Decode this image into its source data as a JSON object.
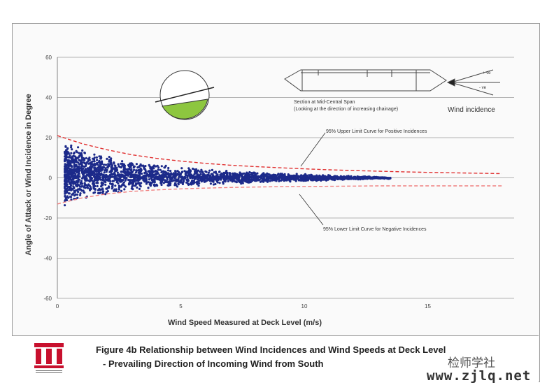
{
  "chart_data": {
    "type": "scatter",
    "xlabel": "Wind Speed Measured at Deck Level (m/s)",
    "ylabel": "Angle of Attack or Wind Incidence in Degree",
    "xlim": [
      0,
      18.5
    ],
    "ylim": [
      -60,
      60
    ],
    "x_ticks": [
      "0",
      "5",
      "10",
      "15"
    ],
    "y_ticks": [
      "60",
      "40",
      "20",
      "0",
      "-20",
      "-40",
      "-60"
    ],
    "grid": "horizontal",
    "series": [
      {
        "marker_color": "#1c2a8a",
        "summary": "dense point cloud, spread decreasing with wind speed",
        "x": [
          0.3,
          0.5,
          0.8,
          1.0,
          1.5,
          2.0,
          2.5,
          3.0,
          3.5,
          4.0,
          4.5,
          5.0,
          5.5,
          6.0,
          6.5,
          7.0,
          7.5,
          8.0,
          8.5,
          9.0,
          9.5,
          10.0,
          10.5,
          11.0,
          11.5,
          12.0,
          13.0,
          13.5
        ],
        "y_upper": [
          20,
          18,
          16,
          15,
          13,
          11,
          10,
          9,
          8,
          7,
          6,
          5.5,
          5,
          4.5,
          4,
          3.5,
          3,
          3,
          2.5,
          2.5,
          2,
          2,
          1.5,
          1.5,
          1,
          1,
          0.5,
          0
        ],
        "y_lower": [
          -15,
          -13,
          -12,
          -11,
          -10,
          -9,
          -8,
          -7,
          -6,
          -5.5,
          -5,
          -4.5,
          -4,
          -4,
          -3.5,
          -3,
          -3,
          -2.5,
          -2.5,
          -2,
          -2,
          -2,
          -1.5,
          -1.5,
          -1,
          -1,
          -0.5,
          -0.5
        ]
      }
    ],
    "limit_curves": [
      {
        "label": "95% Upper Limit Curve for Positive Incidences",
        "color": "#e03030",
        "x": [
          0,
          1,
          2,
          3,
          4,
          5,
          6,
          7,
          8,
          9,
          10,
          11,
          12,
          13,
          14,
          15,
          16,
          17,
          18
        ],
        "y": [
          21,
          17,
          14,
          11.5,
          9.7,
          8.3,
          7.2,
          6.3,
          5.6,
          5.0,
          4.5,
          4.0,
          3.6,
          3.3,
          3.0,
          2.7,
          2.5,
          2.3,
          2.1
        ]
      },
      {
        "label": "95% Lower Limit Curve for Negative Incidences",
        "color": "#f08080",
        "x": [
          0,
          1,
          2,
          3,
          4,
          5,
          6,
          7,
          8,
          9,
          10,
          11,
          12,
          13,
          14,
          15,
          16,
          17,
          18
        ],
        "y": [
          -13,
          -10,
          -8,
          -6.8,
          -6.0,
          -5.5,
          -5.1,
          -4.8,
          -4.6,
          -4.4,
          -4.3,
          -4.2,
          -4.1,
          -4.0,
          -4.0,
          -4.0,
          -4.0,
          -4.0,
          -4.0
        ]
      }
    ],
    "annotations": {
      "section_label_1": "Section at Mid-Central Span",
      "section_label_2": "(Looking at the direction of increasing chainage)",
      "wind_incidence": "Wind incidence",
      "plus_ve": "+ ve",
      "minus_ve": "- ve"
    }
  },
  "caption": {
    "line1": "Figure 4b   Relationship between Wind Incidences and Wind Speeds at Deck Level",
    "line2": "- Prevailing Direction of Incoming Wind from South"
  },
  "colors": {
    "points": "#1c2a8a",
    "upper_curve": "#e03030",
    "lower_curve": "#f08080",
    "gridline": "#9a9a9a",
    "logo": "#c8102e",
    "pie_fill": "#8dc63f"
  },
  "watermark": {
    "line1": "检师学社",
    "line2": "www.zjlq.net"
  }
}
